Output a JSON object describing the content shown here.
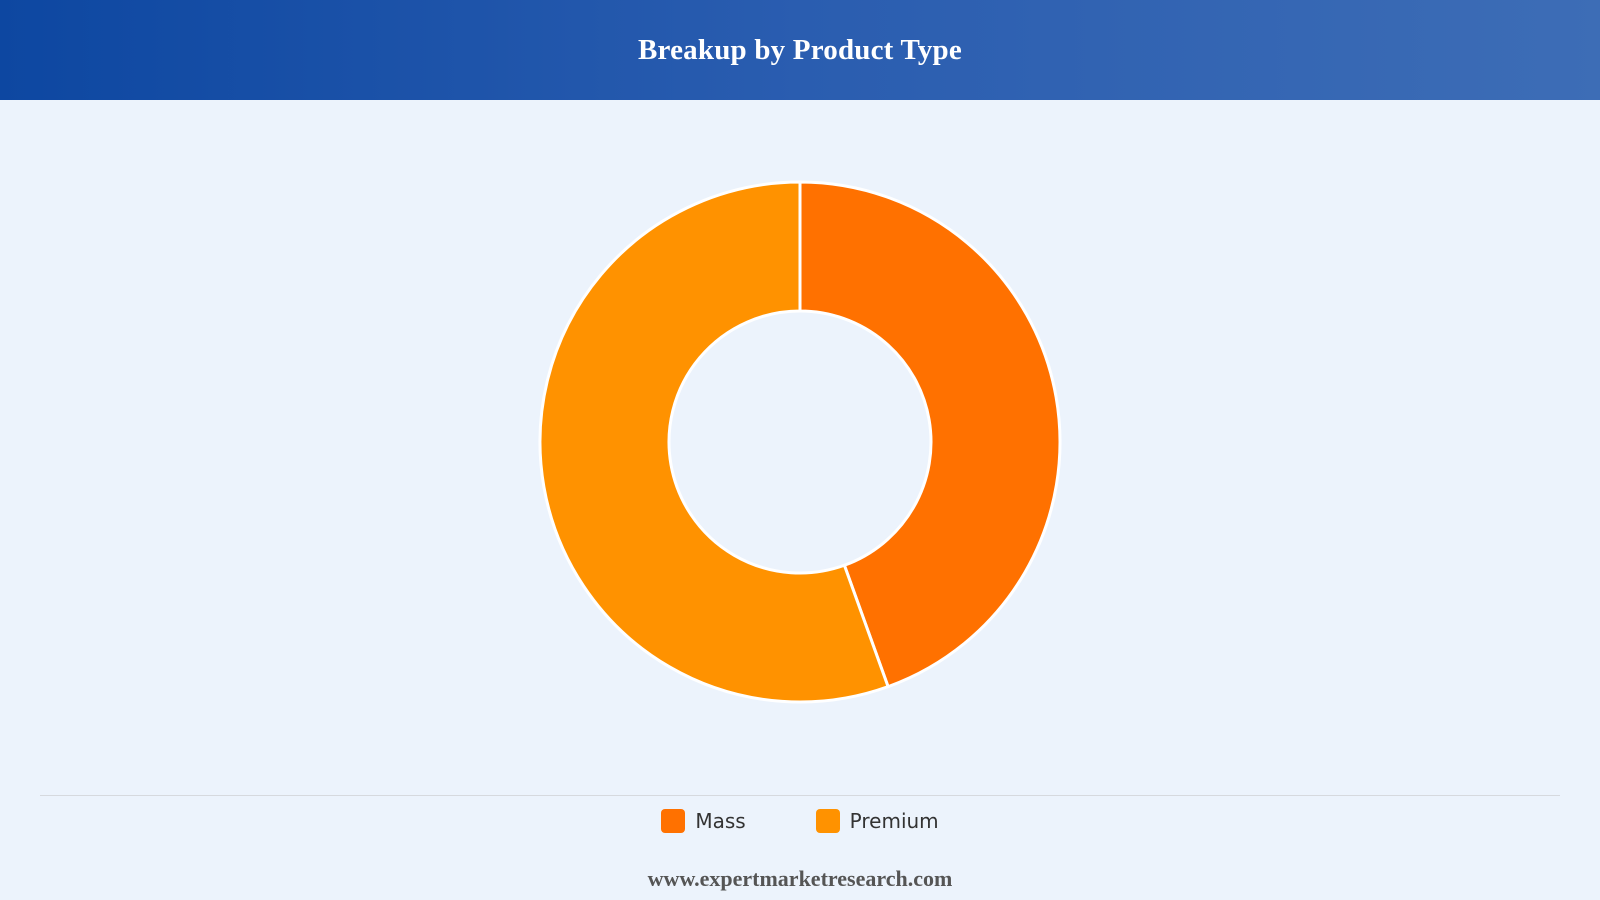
{
  "header": {
    "title": "Breakup by Product Type"
  },
  "footer": {
    "url_text": "www.expertmarketresearch.com"
  },
  "colors": {
    "header_gradient_start": "#0d47a1",
    "header_gradient_end": "#3d6db6",
    "background": "#ecf3fc",
    "slice_border": "#ffffff"
  },
  "chart_data": {
    "type": "pie",
    "style": "donut",
    "title": "Breakup by Product Type",
    "legend_position": "bottom",
    "categories": [
      "Mass",
      "Premium"
    ],
    "values": [
      44.5,
      55.5
    ],
    "unit": "%",
    "colors": [
      "#ff7100",
      "#ff9200"
    ],
    "start_angle_deg": 0,
    "direction": "clockwise"
  }
}
